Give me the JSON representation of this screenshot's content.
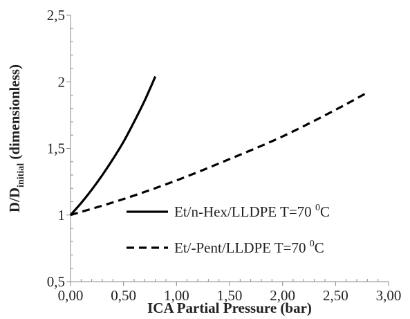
{
  "chart_data": {
    "type": "line",
    "title": "",
    "xlabel": "ICA Partial Pressure (bar)",
    "ylabel": {
      "prefix": "D/D",
      "subscript": "initial",
      "suffix": " (dimensionless)"
    },
    "xlim": [
      0,
      3
    ],
    "ylim": [
      0.5,
      2.5
    ],
    "x_ticks": [
      0,
      0.5,
      1,
      1.5,
      2,
      2.5,
      3
    ],
    "x_tick_labels": [
      "0,00",
      "0,50",
      "1,00",
      "1,50",
      "2,00",
      "2,50",
      "3,00"
    ],
    "y_ticks": [
      0.5,
      1,
      1.5,
      2,
      2.5
    ],
    "y_tick_labels": [
      "0,5",
      "1",
      "1,5",
      "2",
      "2,5"
    ],
    "grid": false,
    "legend_position": "bottom-right",
    "series": [
      {
        "name": {
          "base": "Et/n-Hex/LLDPE T=70 ",
          "sup": "0",
          "tail": "C"
        },
        "line_style": "solid",
        "color": "#000000",
        "x": [
          0,
          0.1,
          0.2,
          0.3,
          0.4,
          0.5,
          0.6,
          0.7,
          0.8
        ],
        "y": [
          1.0,
          1.09,
          1.19,
          1.3,
          1.42,
          1.55,
          1.7,
          1.86,
          2.04
        ]
      },
      {
        "name": {
          "base": "Et/-Pent/LLDPE T=70 ",
          "sup": "0",
          "tail": "C"
        },
        "line_style": "dashed",
        "color": "#000000",
        "x": [
          0,
          0.5,
          1.0,
          1.5,
          2.0,
          2.5,
          2.8
        ],
        "y": [
          1.0,
          1.12,
          1.26,
          1.42,
          1.59,
          1.79,
          1.92
        ]
      }
    ]
  }
}
